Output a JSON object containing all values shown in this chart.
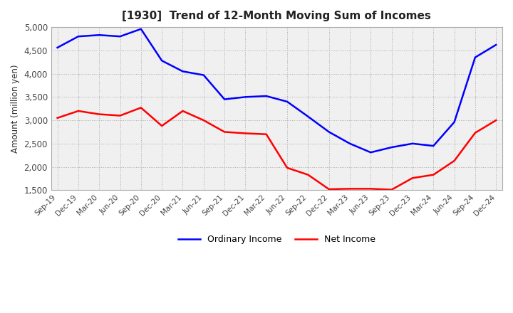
{
  "title": "[1930]  Trend of 12-Month Moving Sum of Incomes",
  "ylabel": "Amount (million yen)",
  "ylim": [
    1500,
    5000
  ],
  "yticks": [
    1500,
    2000,
    2500,
    3000,
    3500,
    4000,
    4500,
    5000
  ],
  "x_labels": [
    "Sep-19",
    "Dec-19",
    "Mar-20",
    "Jun-20",
    "Sep-20",
    "Dec-20",
    "Mar-21",
    "Jun-21",
    "Sep-21",
    "Dec-21",
    "Mar-22",
    "Jun-22",
    "Sep-22",
    "Dec-22",
    "Mar-23",
    "Jun-23",
    "Sep-23",
    "Dec-23",
    "Mar-24",
    "Jun-24",
    "Sep-24",
    "Dec-24"
  ],
  "ordinary_income": [
    4560,
    4800,
    4830,
    4800,
    4960,
    4280,
    4050,
    3970,
    3450,
    3500,
    3520,
    3400,
    3080,
    2750,
    2500,
    2310,
    2420,
    2500,
    2450,
    2960,
    4350,
    4620
  ],
  "net_income": [
    3050,
    3200,
    3130,
    3100,
    3270,
    2880,
    3200,
    3000,
    2750,
    2720,
    2700,
    1980,
    1830,
    1520,
    1530,
    1530,
    1510,
    1760,
    1830,
    2130,
    2730,
    3000
  ],
  "ordinary_color": "#0000FF",
  "net_color": "#FF0000",
  "grid_color": "#AAAAAA",
  "background_color": "#FFFFFF",
  "plot_bg_color": "#F0F0F0"
}
